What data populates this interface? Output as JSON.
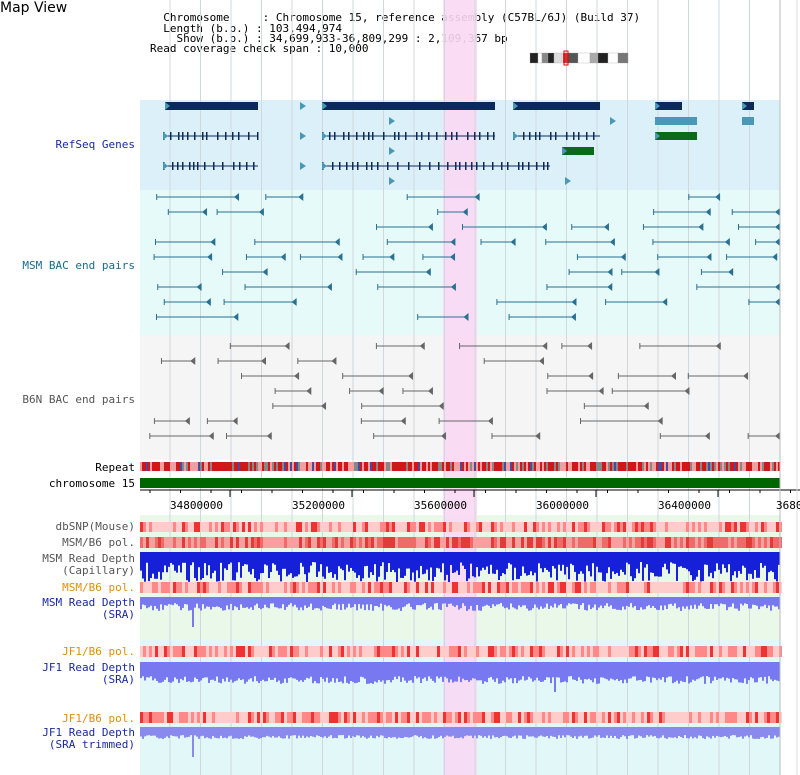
{
  "page": {
    "title": "Map View"
  },
  "header": {
    "line1": "  Chromosome     : Chromosome 15, reference assembly (C57BL/6J) (Build 37)",
    "line2": "  Length (b.p.) : 103,494,974",
    "line3": "    Show (b.p.) : 34,699,933-36,809,299 : 2,109,367 bp",
    "line4": "Read coverage check span : 10,000"
  },
  "tracks": {
    "refseq": "RefSeq Genes",
    "msm_bac": "MSM BAC end pairs",
    "b6n_bac": "B6N BAC end pairs",
    "repeat": "Repeat",
    "chrom": "chromosome 15",
    "dbsnp": "dbSNP(Mouse)",
    "msm_b6_pol_1": "MSM/B6 pol.",
    "msm_depth_cap_1": "MSM Read Depth",
    "msm_depth_cap_2": "(Capillary)",
    "msm_b6_pol_2": "MSM/B6 pol.",
    "msm_depth_sra_1": "MSM Read Depth",
    "msm_depth_sra_2": "(SRA)",
    "jf1_b6_pol_1": "JF1/B6 pol.",
    "jf1_depth_sra_1": "JF1 Read Depth",
    "jf1_depth_sra_2": "(SRA)",
    "jf1_b6_pol_2": "JF1/B6 pol.",
    "jf1_depth_trim_1": "JF1 Read Depth",
    "jf1_depth_trim_2": "(SRA trimmed)"
  },
  "axis": {
    "ticks": [
      "34800000",
      "35200000",
      "35600000",
      "36000000",
      "36400000",
      "3680"
    ]
  },
  "colors": {
    "refseq_bg": "#dcf0fa",
    "msm_bg": "#e6fafa",
    "b6n_bg": "#f5f5f5",
    "highlight": "#f9d8f4",
    "gene_dark": "#0b2a5a",
    "gene_teal": "#4a98b8",
    "gene_green": "#0a6a1a",
    "msm_line": "#2a7090",
    "b6n_line": "#666666",
    "chrom_green": "#006600",
    "label_blue": "#1a2a9a",
    "label_orange": "#e09000",
    "label_teal": "#1a6a8a"
  }
}
